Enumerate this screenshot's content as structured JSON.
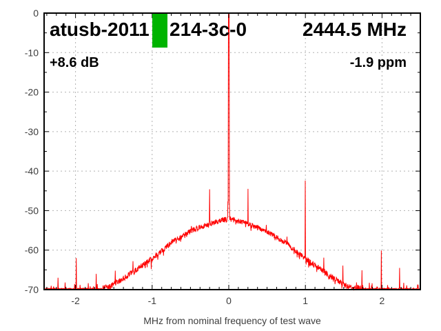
{
  "header": {
    "test_id_left": "atusb-2011",
    "test_id_right": "214-3c-0",
    "frequency": "2444.5 MHz",
    "gain": "+8.6 dB",
    "ppm_offset": "-1.9 ppm",
    "pass_marker_color": "#00b400"
  },
  "chart_data": {
    "type": "line",
    "xlabel": "MHz from nominal frequency of test wave",
    "ylabel": "",
    "xlim": [
      -2.41,
      2.5
    ],
    "ylim": [
      -70,
      0
    ],
    "x_major_ticks": [
      -2,
      -1,
      0,
      1,
      2
    ],
    "x_minor_step": 0.125,
    "y_major_ticks": [
      0,
      -10,
      -20,
      -30,
      -40,
      -50,
      -60,
      -70
    ],
    "y_minor_step": 5,
    "grid": true,
    "legend": "none",
    "carrier": {
      "x": 0,
      "peak_db": -0.3,
      "pedestal_db": -48,
      "pedestal_halfwidth_mhz": 0.012
    },
    "hump_profile": [
      [
        -2.5,
        -69.8
      ],
      [
        -1.7,
        -69.6
      ],
      [
        -1.55,
        -69.0
      ],
      [
        -1.4,
        -67.3
      ],
      [
        -1.25,
        -65.3
      ],
      [
        -1.0,
        -62.0
      ],
      [
        -0.75,
        -58.0
      ],
      [
        -0.5,
        -55.0
      ],
      [
        -0.25,
        -53.2
      ],
      [
        -0.1,
        -52.3
      ],
      [
        0,
        -51.9
      ],
      [
        0.1,
        -52.3
      ],
      [
        0.25,
        -53.2
      ],
      [
        0.5,
        -55.0
      ],
      [
        0.75,
        -58.0
      ],
      [
        1.0,
        -62.0
      ],
      [
        1.25,
        -65.3
      ],
      [
        1.4,
        -67.3
      ],
      [
        1.55,
        -69.0
      ],
      [
        1.7,
        -69.6
      ],
      [
        2.5,
        -69.8
      ]
    ],
    "noise_floor_db": -70,
    "noise_band_db": 1.0,
    "spurs": [
      {
        "x": -2.23,
        "db": -67.0
      },
      {
        "x": -1.99,
        "db": -62.0
      },
      {
        "x": -1.73,
        "db": -66.0
      },
      {
        "x": -1.48,
        "db": -65.2
      },
      {
        "x": -1.25,
        "db": -62.8
      },
      {
        "x": -1.01,
        "db": -64.8
      },
      {
        "x": -0.74,
        "db": -57.2
      },
      {
        "x": -0.49,
        "db": -53.9
      },
      {
        "x": -0.25,
        "db": -44.6
      },
      {
        "x": 0.25,
        "db": -44.5
      },
      {
        "x": 0.49,
        "db": -53.6
      },
      {
        "x": 0.76,
        "db": -56.6
      },
      {
        "x": 1.0,
        "db": -42.4
      },
      {
        "x": 1.24,
        "db": -61.9
      },
      {
        "x": 1.49,
        "db": -63.9
      },
      {
        "x": 1.74,
        "db": -65.1
      },
      {
        "x": 1.99,
        "db": -60.1
      },
      {
        "x": 2.23,
        "db": -64.5
      }
    ],
    "colors": {
      "trace": "#ff0000",
      "grid": "#b0b0b0",
      "border": "#000000",
      "tick_label": "#3d3d3d",
      "title": "#000000",
      "background": "#ffffff"
    }
  }
}
